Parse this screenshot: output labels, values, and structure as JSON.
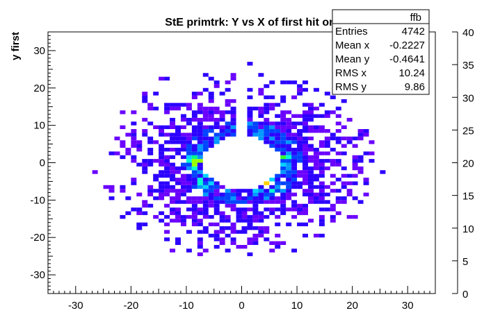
{
  "chart_data": {
    "type": "heatmap",
    "title": "StE primtrk: Y vs X of first hit on trk, ftpcE",
    "xlabel": "",
    "ylabel": "y first",
    "xlim": [
      -35,
      35
    ],
    "ylim": [
      -35,
      35
    ],
    "x_ticks": [
      -30,
      -20,
      -10,
      0,
      10,
      20,
      30
    ],
    "y_ticks": [
      -30,
      -20,
      -10,
      0,
      10,
      20,
      30
    ],
    "bin_size": 1,
    "bins_description": "ring of entries between radius ~7 and ~30 centred on (0,0), gap near x=0 above y>5, highest counts (~20-35) on inner rim near (-8,0), (7,1) and (4,-6)",
    "colorbar": {
      "min": 0,
      "max": 40,
      "ticks": [
        0,
        5,
        10,
        15,
        20,
        25,
        30,
        35,
        40
      ],
      "colors": [
        "#6a00ff",
        "#2b00ff",
        "#0044ff",
        "#0099ff",
        "#00d2ff",
        "#00ffd2",
        "#00ff82",
        "#33ff33",
        "#99ff00",
        "#ccff00",
        "#ffff00",
        "#ffd200",
        "#ffaa00",
        "#ff7700",
        "#ff4400",
        "#ff0000"
      ]
    },
    "legend": "top-right",
    "grid": false
  },
  "stats": {
    "name": "ffb",
    "rows": [
      {
        "label": "Entries",
        "value": "4742"
      },
      {
        "label": "Mean x",
        "value": "-0.2227"
      },
      {
        "label": "Mean y",
        "value": "-0.4641"
      },
      {
        "label": "RMS x",
        "value": "10.24"
      },
      {
        "label": "RMS y",
        "value": "9.86"
      }
    ]
  }
}
